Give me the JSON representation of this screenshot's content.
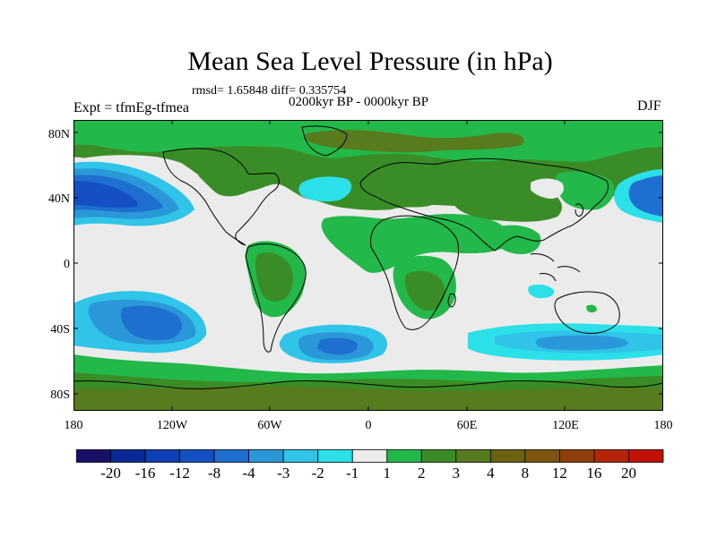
{
  "title": "Mean Sea Level Pressure (in hPa)",
  "stats_text": "rmsd= 1.65848 diff= 0.335754",
  "period_text": "0200kyr BP - 0000kyr BP",
  "experiment_label": "Expt = tfmEg-tfmea",
  "season_label": "DJF",
  "lat_ticks": [
    "80N",
    "40N",
    "0",
    "40S",
    "80S"
  ],
  "lon_ticks": [
    "180",
    "120W",
    "60W",
    "0",
    "60E",
    "120E",
    "180"
  ],
  "colorbar": {
    "colors": [
      "#1a0f66",
      "#0a2a9a",
      "#0d3fb5",
      "#1450c3",
      "#1e6fd0",
      "#2a98d8",
      "#2fc4e8",
      "#2be0e8",
      "#ebebeb",
      "#23b84a",
      "#3a8d26",
      "#587b1e",
      "#6b6212",
      "#7e5410",
      "#8f3f0c",
      "#b32508",
      "#c40f06"
    ],
    "labels": [
      "-20",
      "-16",
      "-12",
      "-8",
      "-4",
      "-3",
      "-2",
      "-1",
      "1",
      "2",
      "3",
      "4",
      "8",
      "12",
      "16",
      "20"
    ]
  },
  "fields": {
    "gray": "#ebebeb",
    "green": "#23b84a",
    "olive": "#3a8d26",
    "brown": "#587b1e",
    "cyan": "#2be0e8",
    "sky": "#2fc4e8",
    "blue": "#2a98d8",
    "dblue": "#1e6fd0",
    "navy": "#1450c3",
    "coast": "#000000"
  }
}
